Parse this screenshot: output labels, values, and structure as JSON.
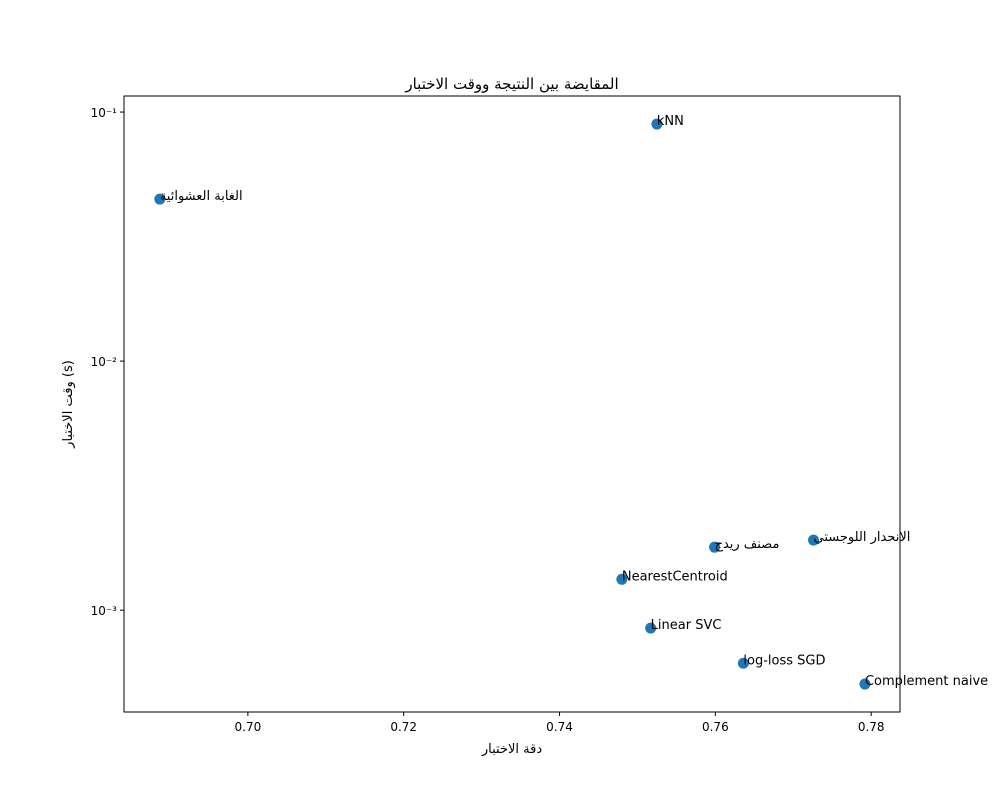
{
  "chart_data": {
    "type": "scatter",
    "title": "المقايضة بين النتيجة ووقت الاختبار",
    "xlabel": "دقة الاختبار",
    "ylabel": "وقت الاختبار (s)",
    "color": "#1f77b4",
    "yscale": "log",
    "points": [
      "الغابة العشوائية",
      "kNN",
      "الانحدار اللوجستي",
      "مصنف ريدج",
      "NearestCentroid",
      "Linear SVC",
      "log-loss SGD",
      "Complement naive"
    ],
    "x": [
      0.6887,
      0.7525,
      0.7726,
      0.7599,
      0.748,
      0.7517,
      0.7636,
      0.7792
    ],
    "values": [
      0.0447,
      0.0895,
      0.00191,
      0.00179,
      0.00133,
      0.000847,
      0.000612,
      0.000505
    ],
    "xlim": [
      0.6841,
      0.7837
    ],
    "xticks": [
      {
        "value": 0.7,
        "label": "0.70"
      },
      {
        "value": 0.72,
        "label": "0.72"
      },
      {
        "value": 0.74,
        "label": "0.74"
      },
      {
        "value": 0.76,
        "label": "0.76"
      },
      {
        "value": 0.78,
        "label": "0.78"
      }
    ],
    "ylim": [
      0.00039,
      0.116
    ],
    "yticks": [
      {
        "value": 0.001,
        "label": "10⁻³"
      },
      {
        "value": 0.01,
        "label": "10⁻²"
      },
      {
        "value": 0.1,
        "label": "10⁻¹"
      }
    ]
  }
}
